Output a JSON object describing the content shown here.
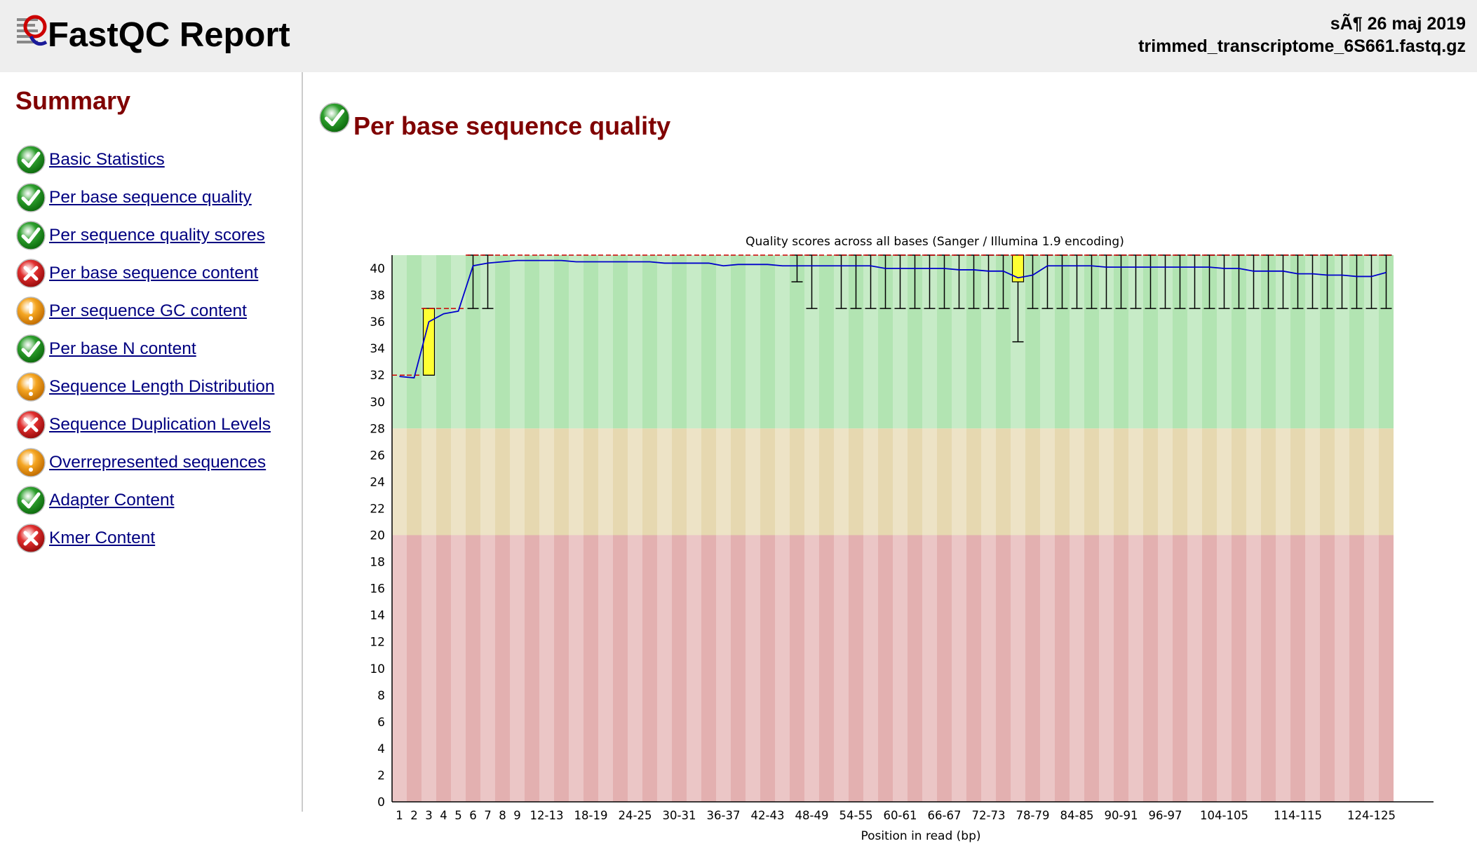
{
  "header": {
    "title": "FastQC Report",
    "date": "sÃ¶ 26 maj 2019",
    "filename": "trimmed_transcriptome_6S661.fastq.gz"
  },
  "sidebar": {
    "title": "Summary",
    "modules": [
      {
        "label": "Basic Statistics",
        "status": "pass"
      },
      {
        "label": "Per base sequence quality",
        "status": "pass"
      },
      {
        "label": "Per sequence quality scores",
        "status": "pass"
      },
      {
        "label": "Per base sequence content",
        "status": "fail"
      },
      {
        "label": "Per sequence GC content",
        "status": "warn"
      },
      {
        "label": "Per base N content",
        "status": "pass"
      },
      {
        "label": "Sequence Length Distribution",
        "status": "warn"
      },
      {
        "label": "Sequence Duplication Levels",
        "status": "fail"
      },
      {
        "label": "Overrepresented sequences",
        "status": "warn"
      },
      {
        "label": "Adapter Content",
        "status": "pass"
      },
      {
        "label": "Kmer Content",
        "status": "fail"
      }
    ]
  },
  "section": {
    "title": "Per base sequence quality",
    "status": "pass"
  },
  "colors": {
    "title_red": "#800000",
    "link_blue": "#000080",
    "zone_good": "#b2e4b2",
    "zone_warn": "#e6d8b0",
    "zone_bad": "#e3b0b0",
    "mean_line": "#0000cc",
    "box_fill": "#ffff33",
    "median_dash": "#cc0000"
  },
  "chart_data": {
    "type": "box",
    "title": "Quality scores across all bases (Sanger / Illumina 1.9 encoding)",
    "xlabel": "Position in read (bp)",
    "ylabel": "",
    "ylim": [
      0,
      41
    ],
    "yticks": [
      0,
      2,
      4,
      6,
      8,
      10,
      12,
      14,
      16,
      18,
      20,
      22,
      24,
      26,
      28,
      30,
      32,
      34,
      36,
      38,
      40
    ],
    "zones": [
      {
        "name": "good",
        "from": 28,
        "to": 41
      },
      {
        "name": "warning",
        "from": 20,
        "to": 28
      },
      {
        "name": "poor",
        "from": 0,
        "to": 20
      }
    ],
    "categories": [
      "1",
      "2",
      "3",
      "4",
      "5",
      "6",
      "7",
      "8",
      "9",
      "10-11",
      "12-13",
      "14-15",
      "16-17",
      "18-19",
      "20-21",
      "22-23",
      "24-25",
      "26-27",
      "28-29",
      "30-31",
      "32-33",
      "34-35",
      "36-37",
      "38-39",
      "40-41",
      "42-43",
      "44-45",
      "46-47",
      "48-49",
      "50-51",
      "52-53",
      "54-55",
      "56-57",
      "58-59",
      "60-61",
      "62-63",
      "64-65",
      "66-67",
      "68-69",
      "70-71",
      "72-73",
      "74-75",
      "76-77",
      "78-79",
      "80-81",
      "82-83",
      "84-85",
      "86-87",
      "88-89",
      "90-91",
      "92-93",
      "94-95",
      "96-97",
      "98-99",
      "100-101",
      "102-103",
      "104-105",
      "106-107",
      "108-109",
      "110-111",
      "112-113",
      "114-115",
      "116-117",
      "118-119",
      "120-121",
      "122-123",
      "124-125",
      "126"
    ],
    "xtick_labels": [
      "1",
      "2",
      "3",
      "4",
      "5",
      "6",
      "7",
      "8",
      "9",
      "12-13",
      "18-19",
      "24-25",
      "30-31",
      "36-37",
      "42-43",
      "48-49",
      "54-55",
      "60-61",
      "66-67",
      "72-73",
      "78-79",
      "84-85",
      "90-91",
      "96-97",
      "104-105",
      "114-115",
      "124-125"
    ],
    "mean": [
      31.9,
      31.8,
      36.0,
      36.6,
      36.8,
      40.2,
      40.4,
      40.5,
      40.6,
      40.6,
      40.6,
      40.6,
      40.5,
      40.5,
      40.5,
      40.5,
      40.5,
      40.5,
      40.4,
      40.4,
      40.4,
      40.4,
      40.2,
      40.3,
      40.3,
      40.3,
      40.2,
      40.2,
      40.2,
      40.2,
      40.2,
      40.2,
      40.2,
      40.0,
      40.0,
      40.0,
      40.0,
      40.0,
      39.9,
      39.9,
      39.8,
      39.8,
      39.3,
      39.5,
      40.2,
      40.2,
      40.2,
      40.2,
      40.1,
      40.1,
      40.1,
      40.1,
      40.1,
      40.1,
      40.1,
      40.1,
      40.0,
      40.0,
      39.8,
      39.8,
      39.8,
      39.6,
      39.6,
      39.5,
      39.5,
      39.4,
      39.4,
      39.7
    ],
    "median": [
      32,
      32,
      37,
      37,
      37,
      41,
      41,
      41,
      41,
      41,
      41,
      41,
      41,
      41,
      41,
      41,
      41,
      41,
      41,
      41,
      41,
      41,
      41,
      41,
      41,
      41,
      41,
      41,
      41,
      41,
      41,
      41,
      41,
      41,
      41,
      41,
      41,
      41,
      41,
      41,
      41,
      41,
      41,
      41,
      41,
      41,
      41,
      41,
      41,
      41,
      41,
      41,
      41,
      41,
      41,
      41,
      41,
      41,
      41,
      41,
      41,
      41,
      41,
      41,
      41,
      41,
      41,
      41
    ],
    "q1": [
      32,
      32,
      32,
      37,
      37,
      41,
      41,
      41,
      41,
      41,
      41,
      41,
      41,
      41,
      41,
      41,
      41,
      41,
      41,
      41,
      41,
      41,
      41,
      41,
      41,
      41,
      41,
      41,
      41,
      41,
      41,
      41,
      41,
      41,
      41,
      41,
      41,
      41,
      41,
      41,
      41,
      41,
      39,
      41,
      41,
      41,
      41,
      41,
      41,
      41,
      41,
      41,
      41,
      41,
      41,
      41,
      41,
      41,
      41,
      41,
      41,
      41,
      41,
      41,
      41,
      41,
      41,
      41
    ],
    "q3": [
      32,
      32,
      37,
      37,
      37,
      41,
      41,
      41,
      41,
      41,
      41,
      41,
      41,
      41,
      41,
      41,
      41,
      41,
      41,
      41,
      41,
      41,
      41,
      41,
      41,
      41,
      41,
      41,
      41,
      41,
      41,
      41,
      41,
      41,
      41,
      41,
      41,
      41,
      41,
      41,
      41,
      41,
      41,
      41,
      41,
      41,
      41,
      41,
      41,
      41,
      41,
      41,
      41,
      41,
      41,
      41,
      41,
      41,
      41,
      41,
      41,
      41,
      41,
      41,
      41,
      41,
      41,
      41
    ],
    "p10": [
      32,
      32,
      32,
      37,
      37,
      37,
      37,
      41,
      41,
      41,
      41,
      41,
      41,
      41,
      41,
      41,
      41,
      41,
      41,
      41,
      41,
      41,
      41,
      41,
      41,
      41,
      41,
      39,
      37,
      41,
      37,
      37,
      37,
      37,
      37,
      37,
      37,
      37,
      37,
      37,
      37,
      37,
      34.5,
      37,
      37,
      37,
      37,
      37,
      37,
      37,
      37,
      37,
      37,
      37,
      37,
      37,
      37,
      37,
      37,
      37,
      37,
      37,
      37,
      37,
      37,
      37,
      37,
      37
    ],
    "p90": [
      32,
      32,
      37,
      37,
      37,
      41,
      41,
      41,
      41,
      41,
      41,
      41,
      41,
      41,
      41,
      41,
      41,
      41,
      41,
      41,
      41,
      41,
      41,
      41,
      41,
      41,
      41,
      41,
      41,
      41,
      41,
      41,
      41,
      41,
      41,
      41,
      41,
      41,
      41,
      41,
      41,
      41,
      41,
      41,
      41,
      41,
      41,
      41,
      41,
      41,
      41,
      41,
      41,
      41,
      41,
      41,
      41,
      41,
      41,
      41,
      41,
      41,
      41,
      41,
      41,
      41,
      41,
      41
    ]
  }
}
